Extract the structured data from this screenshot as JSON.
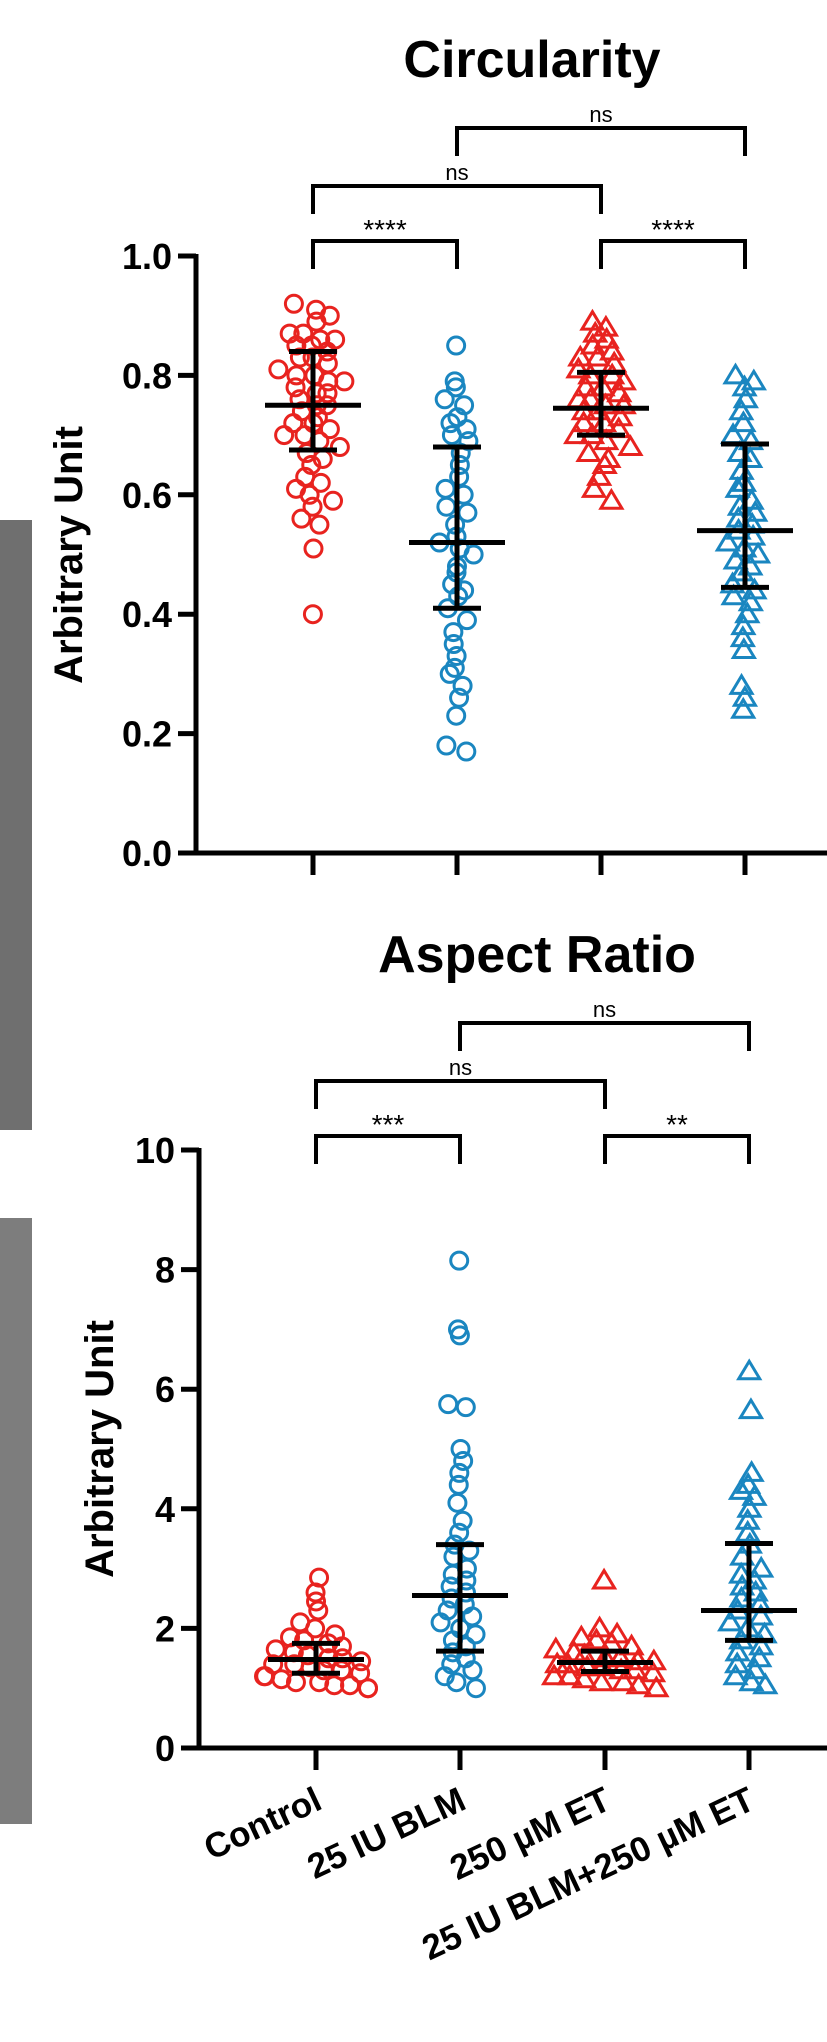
{
  "chart_data": [
    {
      "type": "scatter",
      "title": "Circularity",
      "ylabel": "Arbitrary Unit",
      "xlabel": "",
      "ylim": [
        0,
        1.0
      ],
      "yticks": [
        "0.0",
        "0.2",
        "0.4",
        "0.6",
        "0.8",
        "1.0"
      ],
      "categories": [
        "Control",
        "25 IU BLM",
        "250 µM ET",
        "25 IU BLM+250 µM ET"
      ],
      "colors": {
        "red": "#e8231f",
        "blue": "#1a86c0"
      },
      "groups": [
        {
          "name": "Control",
          "color": "#e8231f",
          "marker": "circle",
          "mean": 0.75,
          "sd_low": 0.675,
          "sd_high": 0.84,
          "values": [
            0.92,
            0.91,
            0.9,
            0.89,
            0.87,
            0.87,
            0.86,
            0.86,
            0.85,
            0.85,
            0.84,
            0.83,
            0.83,
            0.82,
            0.81,
            0.8,
            0.8,
            0.79,
            0.79,
            0.78,
            0.77,
            0.77,
            0.76,
            0.75,
            0.75,
            0.74,
            0.73,
            0.72,
            0.72,
            0.71,
            0.7,
            0.7,
            0.69,
            0.68,
            0.67,
            0.66,
            0.65,
            0.63,
            0.62,
            0.61,
            0.6,
            0.59,
            0.58,
            0.56,
            0.55,
            0.51,
            0.4
          ]
        },
        {
          "name": "25 IU BLM",
          "color": "#1a86c0",
          "marker": "circle",
          "mean": 0.52,
          "sd_low": 0.41,
          "sd_high": 0.68,
          "values": [
            0.85,
            0.79,
            0.78,
            0.76,
            0.75,
            0.73,
            0.72,
            0.71,
            0.7,
            0.69,
            0.67,
            0.65,
            0.63,
            0.61,
            0.6,
            0.58,
            0.57,
            0.55,
            0.53,
            0.52,
            0.51,
            0.5,
            0.48,
            0.47,
            0.45,
            0.44,
            0.43,
            0.41,
            0.39,
            0.37,
            0.35,
            0.33,
            0.31,
            0.3,
            0.28,
            0.26,
            0.23,
            0.18,
            0.17
          ]
        },
        {
          "name": "250 µM ET",
          "color": "#e8231f",
          "marker": "triangle",
          "mean": 0.745,
          "sd_low": 0.7,
          "sd_high": 0.805,
          "values": [
            0.89,
            0.88,
            0.87,
            0.86,
            0.85,
            0.84,
            0.83,
            0.83,
            0.82,
            0.81,
            0.8,
            0.8,
            0.79,
            0.78,
            0.78,
            0.77,
            0.76,
            0.76,
            0.75,
            0.75,
            0.74,
            0.74,
            0.73,
            0.72,
            0.72,
            0.71,
            0.7,
            0.7,
            0.69,
            0.68,
            0.67,
            0.66,
            0.65,
            0.63,
            0.61,
            0.59
          ]
        },
        {
          "name": "25 IU BLM+250 µM ET",
          "color": "#1a86c0",
          "marker": "triangle",
          "mean": 0.54,
          "sd_low": 0.445,
          "sd_high": 0.685,
          "values": [
            0.8,
            0.79,
            0.78,
            0.76,
            0.74,
            0.72,
            0.7,
            0.69,
            0.67,
            0.66,
            0.64,
            0.62,
            0.61,
            0.59,
            0.58,
            0.57,
            0.56,
            0.55,
            0.54,
            0.53,
            0.52,
            0.51,
            0.5,
            0.49,
            0.48,
            0.47,
            0.45,
            0.44,
            0.43,
            0.42,
            0.4,
            0.38,
            0.36,
            0.34,
            0.28,
            0.26,
            0.24
          ]
        }
      ],
      "comparisons": [
        {
          "from": 0,
          "to": 1,
          "label": "****",
          "level": 0
        },
        {
          "from": 2,
          "to": 3,
          "label": "****",
          "level": 0
        },
        {
          "from": 0,
          "to": 2,
          "label": "ns",
          "level": 1
        },
        {
          "from": 1,
          "to": 3,
          "label": "ns",
          "level": 2
        }
      ]
    },
    {
      "type": "scatter",
      "title": "Aspect Ratio",
      "ylabel": "Arbitrary Unit",
      "xlabel": "",
      "ylim": [
        0,
        10
      ],
      "yticks": [
        "0",
        "2",
        "4",
        "6",
        "8",
        "10"
      ],
      "categories": [
        "Control",
        "25 IU BLM",
        "250 µM ET",
        "25 IU BLM+250 µM ET"
      ],
      "groups": [
        {
          "name": "Control",
          "color": "#e8231f",
          "marker": "circle",
          "mean": 1.48,
          "sd_low": 1.25,
          "sd_high": 1.75,
          "values": [
            2.85,
            2.6,
            2.45,
            2.3,
            2.1,
            2.0,
            1.9,
            1.85,
            1.8,
            1.75,
            1.7,
            1.65,
            1.6,
            1.55,
            1.5,
            1.5,
            1.45,
            1.4,
            1.4,
            1.35,
            1.3,
            1.3,
            1.25,
            1.2,
            1.2,
            1.15,
            1.1,
            1.1,
            1.05,
            1.05,
            1.0,
            1.0
          ]
        },
        {
          "name": "25 IU BLM",
          "color": "#1a86c0",
          "marker": "circle",
          "mean": 2.55,
          "sd_low": 1.62,
          "sd_high": 3.4,
          "values": [
            8.15,
            7.0,
            6.9,
            5.75,
            5.7,
            5.0,
            4.8,
            4.6,
            4.4,
            4.1,
            3.8,
            3.6,
            3.4,
            3.3,
            3.2,
            3.0,
            2.9,
            2.8,
            2.7,
            2.6,
            2.5,
            2.4,
            2.3,
            2.2,
            2.1,
            2.0,
            1.9,
            1.8,
            1.7,
            1.6,
            1.5,
            1.4,
            1.3,
            1.2,
            1.1,
            1.0
          ]
        },
        {
          "name": "250 µM ET",
          "color": "#e8231f",
          "marker": "triangle",
          "mean": 1.43,
          "sd_low": 1.28,
          "sd_high": 1.62,
          "values": [
            2.8,
            2.0,
            1.9,
            1.85,
            1.8,
            1.75,
            1.7,
            1.65,
            1.6,
            1.55,
            1.5,
            1.5,
            1.45,
            1.45,
            1.4,
            1.4,
            1.35,
            1.35,
            1.3,
            1.3,
            1.25,
            1.2,
            1.2,
            1.15,
            1.1,
            1.1,
            1.05,
            1.0
          ]
        },
        {
          "name": "25 IU BLM+250 µM ET",
          "color": "#1a86c0",
          "marker": "triangle",
          "mean": 2.3,
          "sd_low": 1.8,
          "sd_high": 3.42,
          "values": [
            6.3,
            5.65,
            4.6,
            4.4,
            4.3,
            4.2,
            4.0,
            3.8,
            3.6,
            3.4,
            3.2,
            3.0,
            2.9,
            2.8,
            2.7,
            2.6,
            2.5,
            2.4,
            2.3,
            2.2,
            2.1,
            2.0,
            1.9,
            1.8,
            1.7,
            1.6,
            1.5,
            1.4,
            1.3,
            1.2,
            1.1,
            1.05
          ]
        }
      ],
      "comparisons": [
        {
          "from": 0,
          "to": 1,
          "label": "***",
          "level": 0
        },
        {
          "from": 2,
          "to": 3,
          "label": "**",
          "level": 0
        },
        {
          "from": 0,
          "to": 2,
          "label": "ns",
          "level": 1
        },
        {
          "from": 1,
          "to": 3,
          "label": "ns",
          "level": 2
        }
      ]
    }
  ]
}
